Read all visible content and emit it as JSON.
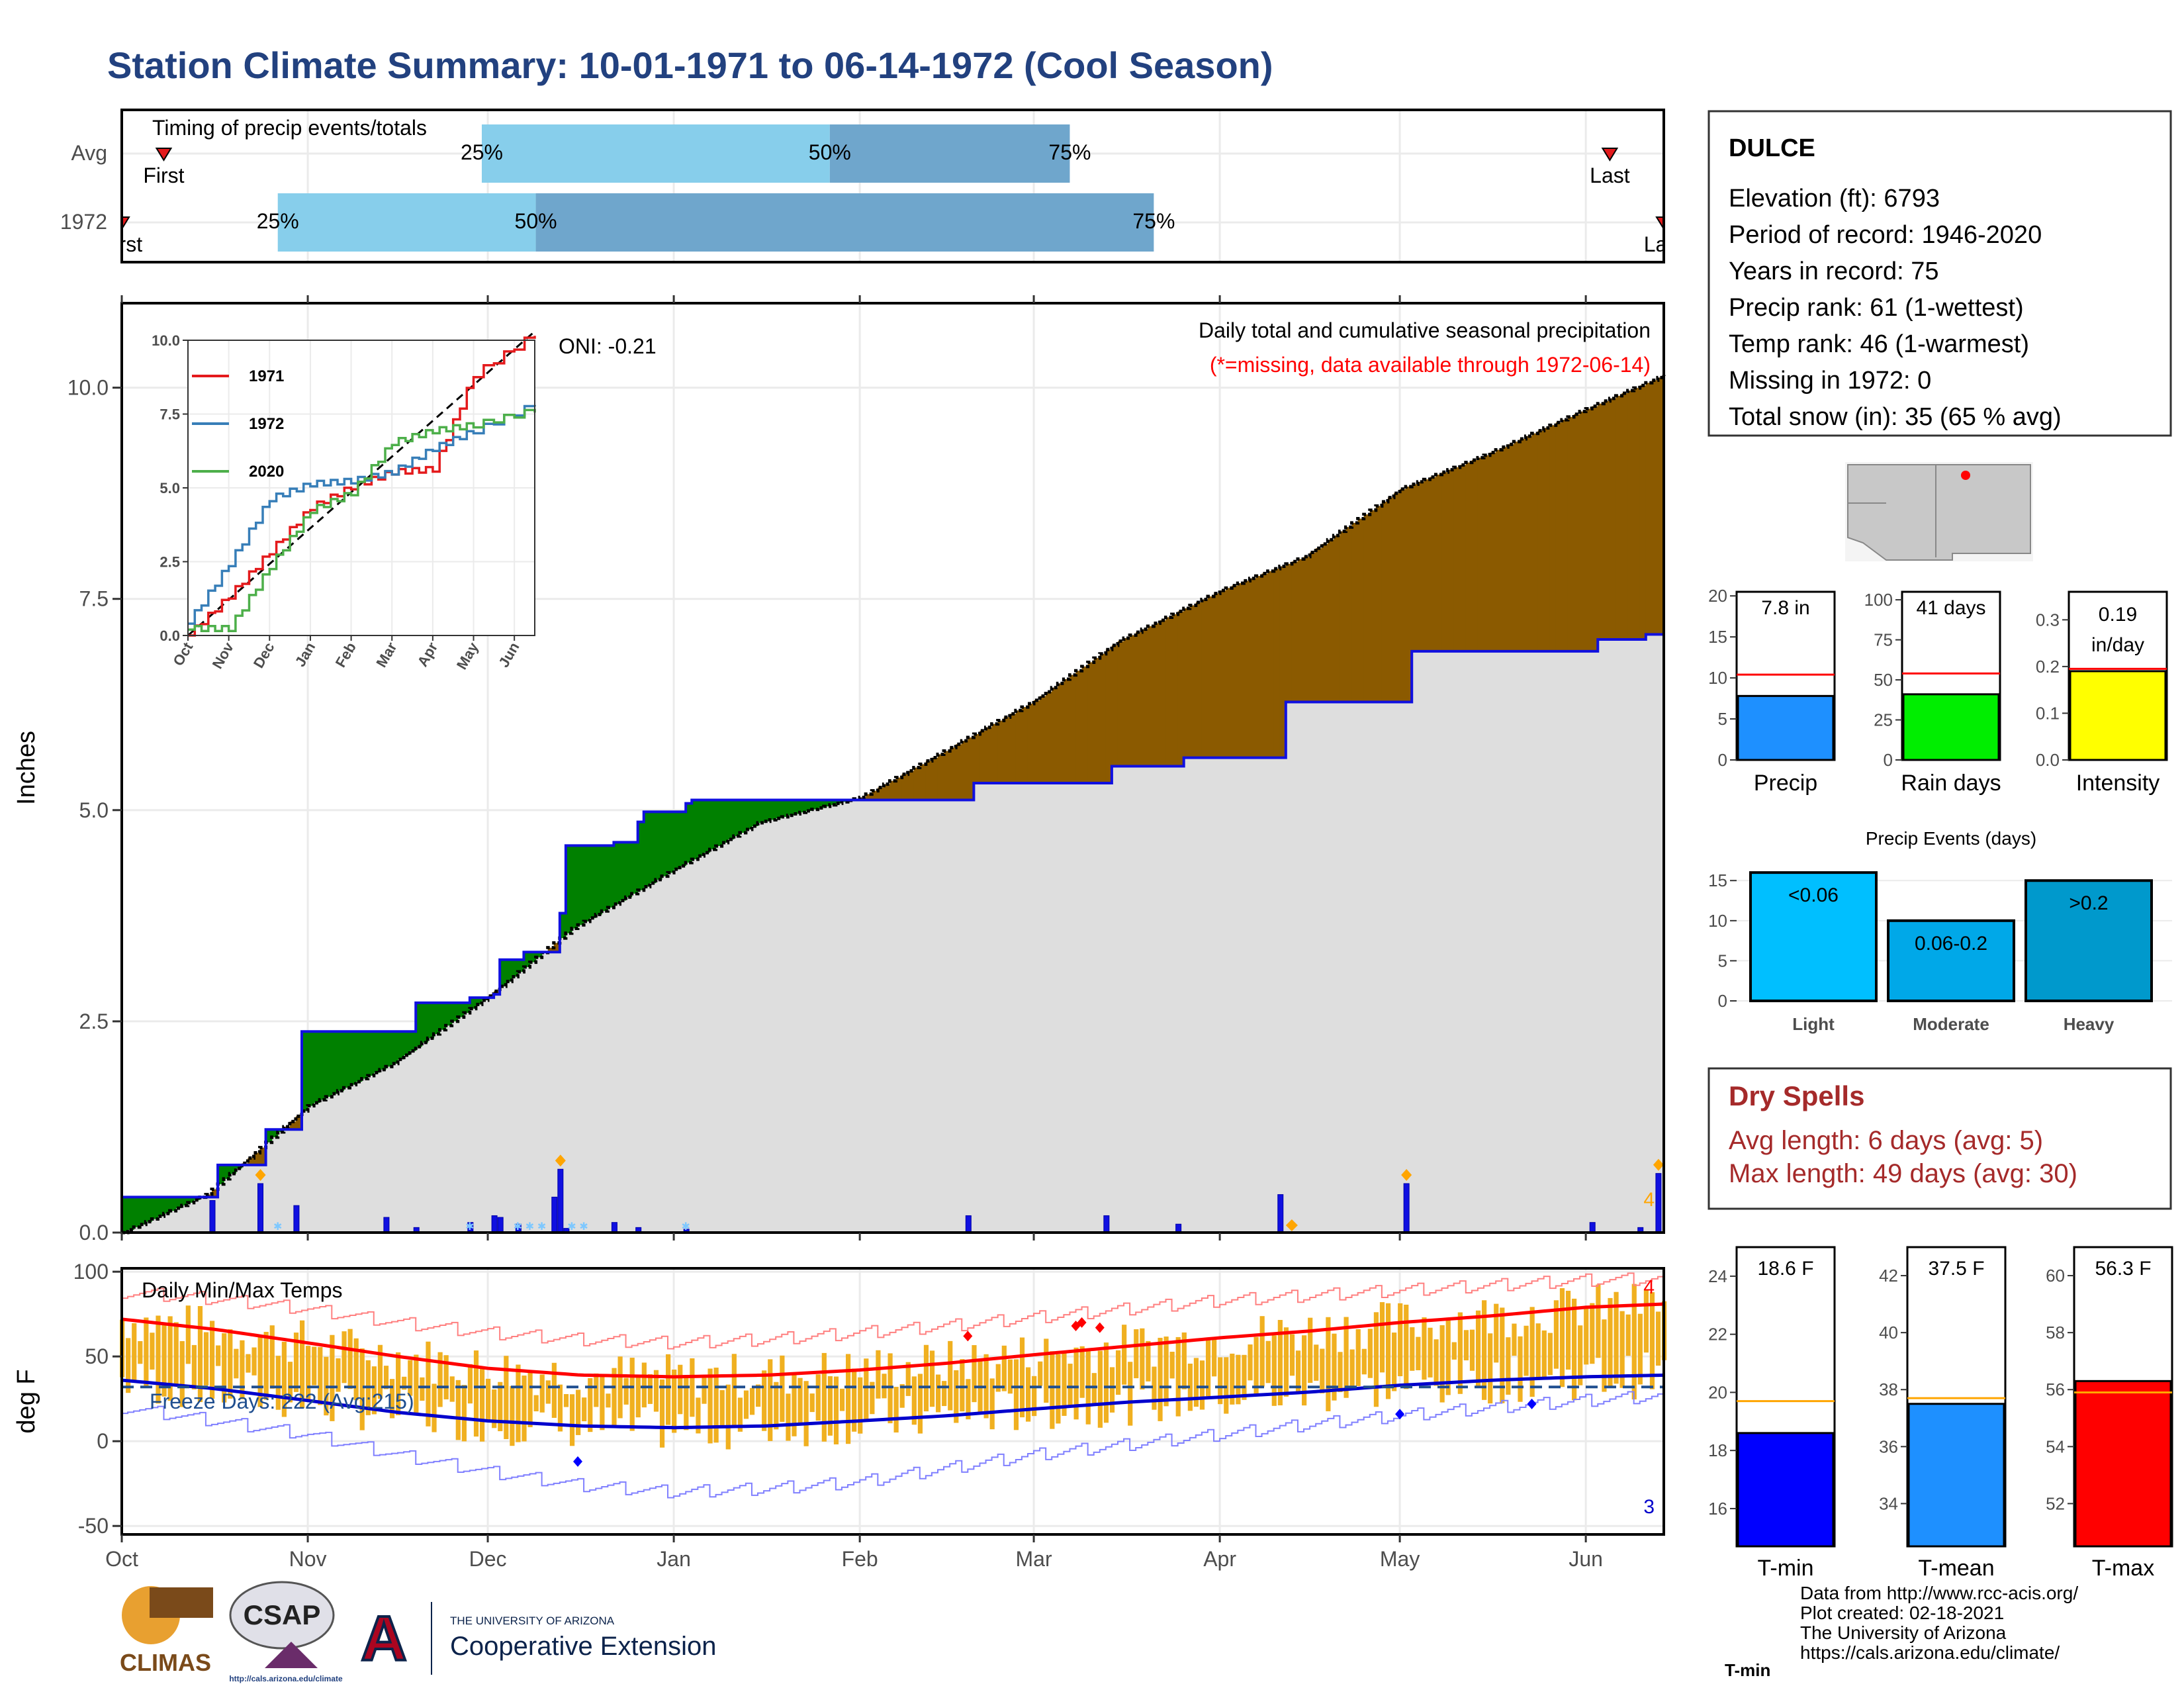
{
  "title": "Station Climate Summary: 10-01-1971 to 06-14-1972 (Cool Season)",
  "timing": {
    "label": "Timing of precip events/totals",
    "rows": [
      {
        "name": "Avg",
        "first_label": "First",
        "last_label": "Last",
        "first": "10-08",
        "last": "06-05",
        "p25": "11-30",
        "p50": "01-27",
        "p75": "03-07"
      },
      {
        "name": "1972",
        "first_label": "First",
        "last_label": "Last",
        "first": "10-01",
        "last": "06-14",
        "p25": "10-27",
        "p50": "12-09",
        "p75": "03-21"
      }
    ],
    "pct_labels": [
      "25%",
      "50%",
      "75%"
    ]
  },
  "station": {
    "name": "DULCE",
    "lines": [
      "Elevation (ft): 6793",
      "Period of record: 1946-2020",
      "Years in record: 75",
      "Precip rank: 61 (1-wettest)",
      "Temp rank: 46 (1-warmest)",
      "Missing in 1972: 0",
      "Total snow (in): 35 (65 % avg)"
    ]
  },
  "precip_panel": {
    "ylabel": "Inches",
    "subtitle": "Daily total and cumulative seasonal precipitation",
    "missing_note": "(*=missing, data available through 1972-06-14)",
    "oni": "ONI: -0.21",
    "corner_count": "4"
  },
  "inset": {
    "series": [
      {
        "name": "1971",
        "color": "#e41a1c"
      },
      {
        "name": "1972",
        "color": "#377eb8"
      },
      {
        "name": "2020",
        "color": "#4daf4a"
      }
    ],
    "ytick_labels": [
      "0.0",
      "2.5",
      "5.0",
      "7.5",
      "10.0"
    ],
    "xtick_labels": [
      "Oct",
      "Nov",
      "Dec",
      "Jan",
      "Feb",
      "Mar",
      "Apr",
      "May",
      "Jun"
    ]
  },
  "temp_panel": {
    "ylabel": "deg F",
    "title": "Daily Min/Max Temps",
    "freeze_text": "Freeze Days: 222 (Avg:215)",
    "count_top": "4",
    "count_bottom": "3"
  },
  "month_labels": [
    "Oct",
    "Nov",
    "Dec",
    "Jan",
    "Feb",
    "Mar",
    "Apr",
    "May",
    "Jun"
  ],
  "mini_precip": [
    {
      "label": "Precip",
      "value_text": "7.8 in",
      "value": 7.8,
      "avg": 10.4,
      "ymax": 20.5,
      "ticks": [
        "0",
        "5",
        "10",
        "15",
        "20"
      ],
      "color": "#1e90ff"
    },
    {
      "label": "Rain days",
      "value_text": "41 days",
      "value": 41,
      "avg": 54,
      "ymax": 105,
      "ticks": [
        "0",
        "25",
        "50",
        "75",
        "100"
      ],
      "color": "#00ee00"
    },
    {
      "label": "Intensity",
      "value_text": "0.19 in/day",
      "value_line1": "0.19",
      "value_line2": "in/day",
      "value": 0.19,
      "avg": 0.195,
      "ymax": 0.36,
      "ticks": [
        "0.0",
        "0.1",
        "0.2",
        "0.3"
      ],
      "color": "#ffff00"
    }
  ],
  "events": {
    "title": "Precip Events (days)",
    "ticks": [
      "0",
      "5",
      "10",
      "15"
    ],
    "bars": [
      {
        "label": "Light",
        "range": "<0.06",
        "value": 16,
        "color": "#00bfff"
      },
      {
        "label": "Moderate",
        "range": "0.06-0.2",
        "value": 10,
        "color": "#00a8e8"
      },
      {
        "label": "Heavy",
        "range": ">0.2",
        "value": 15,
        "color": "#0099cc"
      }
    ]
  },
  "dry_spells": {
    "title": "Dry Spells",
    "avg_length": "Avg length: 6 days (avg: 5)",
    "max_length": "Max length: 49 days (avg: 30)"
  },
  "mini_temps": [
    {
      "label": "T-min",
      "value_text": "18.6 F",
      "value": 18.6,
      "avg": 19.7,
      "ymin": 14.7,
      "ymax": 25,
      "ticks": [
        16,
        18,
        20,
        22,
        24
      ],
      "color": "#0000ff"
    },
    {
      "label": "T-mean",
      "value_text": "37.5 F",
      "value": 37.5,
      "avg": 37.7,
      "ymin": 32.5,
      "ymax": 43,
      "ticks": [
        34,
        36,
        38,
        40,
        42
      ],
      "color": "#1e90ff"
    },
    {
      "label": "T-max",
      "value_text": "56.3 F",
      "value": 56.3,
      "avg": 55.9,
      "ymin": 50.5,
      "ymax": 61,
      "ticks": [
        52,
        54,
        56,
        58,
        60
      ],
      "color": "#ff0000"
    }
  ],
  "logos": {
    "climas": "CLIMAS",
    "csap": "CSAP",
    "csap_url": "http://cals.arizona.edu/climate",
    "ua_line1": "THE UNIVERSITY OF ARIZONA",
    "ua_line2": "Cooperative Extension"
  },
  "credits": [
    "Data from http://www.rcc-acis.org/",
    "Plot created: 02-18-2021",
    "The University of Arizona",
    "https://cals.arizona.edu/climate/"
  ],
  "chart_data": {
    "type": "area",
    "title": "Daily total and cumulative seasonal precipitation",
    "ylabel": "Inches",
    "ylim": [
      0,
      11
    ],
    "x_start": "1971-10-01",
    "x_end": "1972-06-14",
    "avg_cumulative": {
      "dates": [
        "1971-10-01",
        "1971-10-15",
        "1971-11-01",
        "1971-11-15",
        "1971-12-01",
        "1971-12-15",
        "1972-01-01",
        "1972-01-15",
        "1972-02-01",
        "1972-02-15",
        "1972-03-01",
        "1972-03-15",
        "1972-04-01",
        "1972-04-15",
        "1972-05-01",
        "1972-05-15",
        "1972-06-01",
        "1972-06-14"
      ],
      "values": [
        0.0,
        0.45,
        1.5,
        2.0,
        2.8,
        3.6,
        4.3,
        4.85,
        5.15,
        5.7,
        6.3,
        7.0,
        7.6,
        8.0,
        8.8,
        9.2,
        9.75,
        10.15
      ]
    },
    "obs_cumulative": {
      "dates": [
        "1971-10-01",
        "1971-10-16",
        "1971-10-17",
        "1971-10-24",
        "1971-10-25",
        "1971-10-30",
        "1971-10-31",
        "1971-11-14",
        "1971-11-19",
        "1971-11-28",
        "1971-12-02",
        "1971-12-03",
        "1971-12-06",
        "1971-12-07",
        "1971-12-12",
        "1971-12-13",
        "1971-12-14",
        "1971-12-22",
        "1971-12-23",
        "1971-12-26",
        "1971-12-27",
        "1972-01-03",
        "1972-01-04",
        "1972-02-19",
        "1972-02-20",
        "1972-03-13",
        "1972-03-14",
        "1972-03-25",
        "1972-03-26",
        "1972-04-11",
        "1972-04-12",
        "1972-05-02",
        "1972-05-03",
        "1972-06-02",
        "1972-06-03",
        "1972-06-10",
        "1972-06-11",
        "1972-06-13",
        "1972-06-14"
      ],
      "values": [
        0.42,
        0.42,
        0.8,
        0.8,
        1.22,
        1.22,
        2.38,
        2.38,
        2.72,
        2.78,
        2.82,
        3.23,
        3.23,
        3.32,
        3.32,
        3.78,
        4.58,
        4.62,
        4.62,
        4.86,
        4.98,
        5.08,
        5.12,
        5.12,
        5.32,
        5.32,
        5.52,
        5.52,
        5.62,
        5.62,
        6.28,
        6.28,
        6.88,
        6.88,
        7.02,
        7.02,
        7.08,
        7.08,
        7.78
      ]
    },
    "daily_precip": {
      "dates": [
        "1971-10-16",
        "1971-10-24",
        "1971-10-30",
        "1971-11-14",
        "1971-11-19",
        "1971-11-28",
        "1971-12-02",
        "1971-12-03",
        "1971-12-06",
        "1971-12-12",
        "1971-12-13",
        "1971-12-14",
        "1971-12-22",
        "1971-12-26",
        "1972-01-03",
        "1972-02-19",
        "1972-03-13",
        "1972-03-25",
        "1972-04-11",
        "1972-05-02",
        "1972-06-02",
        "1972-06-10",
        "1972-06-13"
      ],
      "values": [
        0.38,
        0.58,
        0.32,
        0.18,
        0.06,
        0.12,
        0.2,
        0.18,
        0.1,
        0.42,
        0.75,
        0.05,
        0.12,
        0.06,
        0.04,
        0.2,
        0.2,
        0.1,
        0.45,
        0.58,
        0.12,
        0.06,
        0.7
      ]
    },
    "inset_series": [
      {
        "name": "1971",
        "months": [
          0,
          1,
          2,
          3,
          4,
          5,
          6,
          7,
          8.5
        ],
        "values": [
          0.0,
          1.3,
          2.8,
          4.3,
          5.0,
          5.5,
          5.6,
          8.8,
          10.2
        ]
      },
      {
        "name": "1972",
        "months": [
          0,
          1,
          2,
          3,
          4,
          5,
          6,
          7,
          8.5
        ],
        "values": [
          0.4,
          2.4,
          4.6,
          5.1,
          5.2,
          5.5,
          6.3,
          6.9,
          7.8
        ]
      },
      {
        "name": "2020",
        "months": [
          0,
          1,
          2,
          3,
          4,
          5,
          6,
          7,
          8.5
        ],
        "values": [
          0.2,
          0.2,
          2.3,
          4.2,
          4.8,
          6.5,
          6.9,
          7.1,
          7.6
        ]
      }
    ],
    "temps": {
      "ylim": [
        -55,
        102
      ],
      "freeze_line": 32,
      "months": [
        0,
        0.5,
        1,
        1.5,
        2,
        2.5,
        3,
        3.5,
        4,
        4.5,
        5,
        5.5,
        6,
        6.5,
        7,
        7.5,
        8,
        8.45
      ],
      "avg_max": [
        72,
        66,
        58,
        50,
        43,
        39,
        38,
        39,
        42,
        46,
        51,
        56,
        61,
        65,
        70,
        74,
        79,
        81
      ],
      "avg_min": [
        36,
        31,
        24,
        17,
        12,
        9,
        8,
        9,
        12,
        15,
        19,
        23,
        26,
        29,
        33,
        36,
        38,
        39
      ],
      "rec_max": [
        88,
        84,
        78,
        70,
        64,
        60,
        58,
        60,
        64,
        68,
        73,
        78,
        83,
        86,
        89,
        92,
        95,
        96
      ],
      "rec_min": [
        20,
        12,
        4,
        -8,
        -18,
        -26,
        -30,
        -28,
        -24,
        -16,
        -8,
        -2,
        4,
        10,
        15,
        20,
        24,
        27
      ]
    }
  }
}
